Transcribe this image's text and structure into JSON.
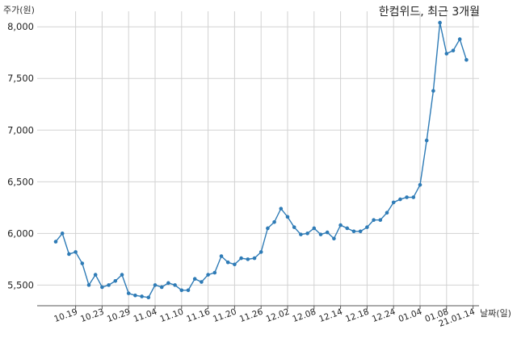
{
  "chart_data": {
    "type": "line",
    "title": "한컴위드, 최근 3개월",
    "ylabel": "주가(원)",
    "xlabel": "날짜(일)",
    "ylim": [
      5300,
      8150
    ],
    "yticks": [
      5500,
      6000,
      6500,
      7000,
      7500,
      8000
    ],
    "ytick_labels": [
      "5,500",
      "6,000",
      "6,500",
      "7,000",
      "7,500",
      "8,000"
    ],
    "xtick_labels": [
      "10.19",
      "10.23",
      "10.29",
      "11.04",
      "11.10",
      "11.16",
      "11.20",
      "11.26",
      "12.02",
      "12.08",
      "12.14",
      "12.18",
      "12.24",
      "01.04",
      "01.08",
      "21.01.14"
    ],
    "xtick_index": [
      3,
      7,
      11,
      15,
      19,
      23,
      27,
      31,
      35,
      39,
      43,
      47,
      51,
      55,
      59,
      63
    ],
    "grid": true,
    "color": "#2e7bb6",
    "values": [
      5920,
      6000,
      5800,
      5820,
      5710,
      5500,
      5600,
      5480,
      5500,
      5540,
      5600,
      5420,
      5400,
      5390,
      5380,
      5500,
      5480,
      5520,
      5500,
      5450,
      5450,
      5560,
      5530,
      5600,
      5620,
      5780,
      5720,
      5700,
      5760,
      5750,
      5760,
      5820,
      6050,
      6110,
      6240,
      6160,
      6060,
      5990,
      6000,
      6050,
      5990,
      6010,
      5950,
      6080,
      6050,
      6020,
      6020,
      6060,
      6130,
      6130,
      6200,
      6300,
      6330,
      6350,
      6350,
      6470,
      6900,
      7380,
      8040,
      7740,
      7770,
      7880,
      7680
    ]
  }
}
